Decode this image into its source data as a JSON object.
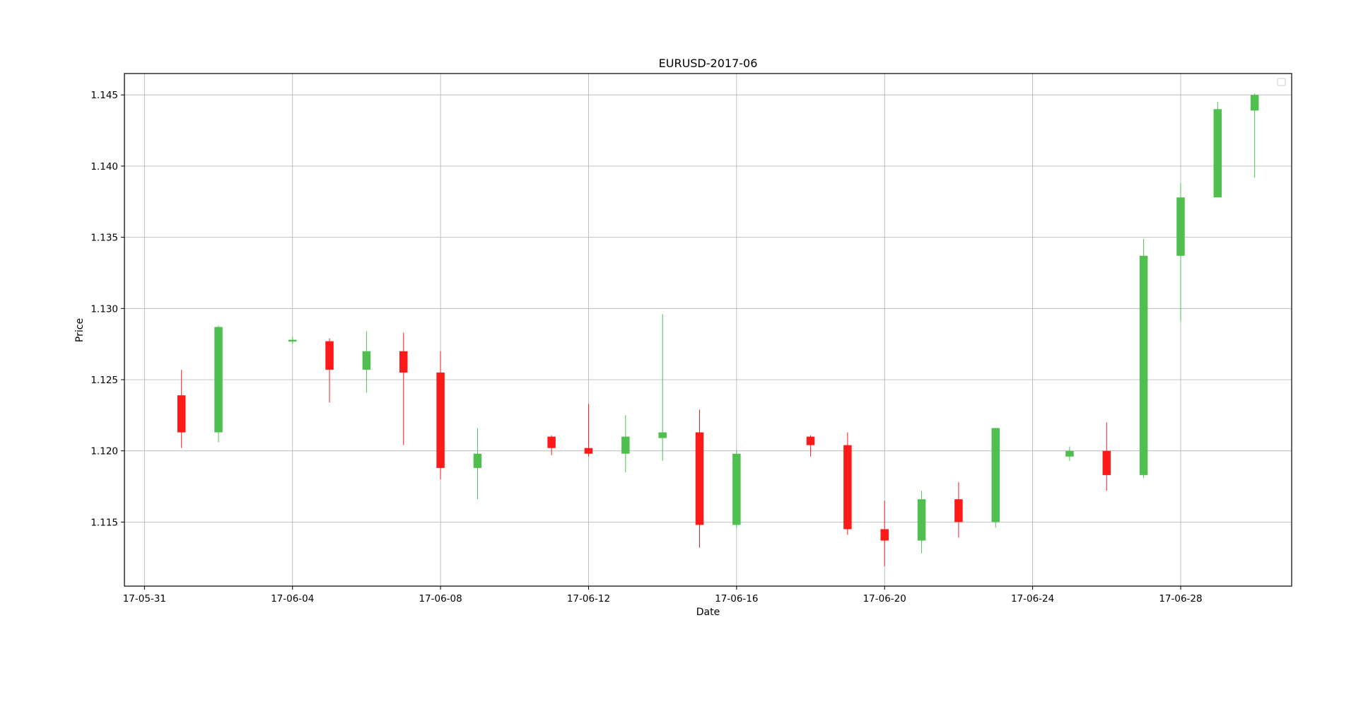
{
  "chart_data": {
    "type": "candlestick",
    "title": "EURUSD-2017-06",
    "xlabel": "Date",
    "ylabel": "Price",
    "grid": true,
    "legend": "top-right",
    "xlim": [
      "2017-05-30T11:00",
      "2017-07-01T00:00"
    ],
    "ylim": [
      1.1105,
      1.1465
    ],
    "x_ticks": [
      {
        "date": "2017-05-31",
        "label": "17-05-31"
      },
      {
        "date": "2017-06-04",
        "label": "17-06-04"
      },
      {
        "date": "2017-06-08",
        "label": "17-06-08"
      },
      {
        "date": "2017-06-12",
        "label": "17-06-12"
      },
      {
        "date": "2017-06-16",
        "label": "17-06-16"
      },
      {
        "date": "2017-06-20",
        "label": "17-06-20"
      },
      {
        "date": "2017-06-24",
        "label": "17-06-24"
      },
      {
        "date": "2017-06-28",
        "label": "17-06-28"
      }
    ],
    "y_ticks": [
      {
        "value": 1.115,
        "label": "1.115"
      },
      {
        "value": 1.12,
        "label": "1.120"
      },
      {
        "value": 1.125,
        "label": "1.125"
      },
      {
        "value": 1.13,
        "label": "1.130"
      },
      {
        "value": 1.135,
        "label": "1.135"
      },
      {
        "value": 1.14,
        "label": "1.140"
      },
      {
        "value": 1.145,
        "label": "1.145"
      }
    ],
    "up_color": "#4fbf4f",
    "down_color": "#ff1a1a",
    "candles": [
      {
        "date": "2017-06-01",
        "open": 1.1239,
        "high": 1.1257,
        "low": 1.1202,
        "close": 1.1213
      },
      {
        "date": "2017-06-02",
        "open": 1.1213,
        "high": 1.1288,
        "low": 1.1206,
        "close": 1.1287
      },
      {
        "date": "2017-06-04",
        "open": 1.1277,
        "high": 1.128,
        "low": 1.1275,
        "close": 1.1278
      },
      {
        "date": "2017-06-05",
        "open": 1.1277,
        "high": 1.1279,
        "low": 1.1234,
        "close": 1.1257
      },
      {
        "date": "2017-06-06",
        "open": 1.1257,
        "high": 1.1284,
        "low": 1.1241,
        "close": 1.127
      },
      {
        "date": "2017-06-07",
        "open": 1.127,
        "high": 1.1283,
        "low": 1.1204,
        "close": 1.1255
      },
      {
        "date": "2017-06-08",
        "open": 1.1255,
        "high": 1.127,
        "low": 1.118,
        "close": 1.1188
      },
      {
        "date": "2017-06-09",
        "open": 1.1188,
        "high": 1.1216,
        "low": 1.1166,
        "close": 1.1198
      },
      {
        "date": "2017-06-11",
        "open": 1.121,
        "high": 1.1211,
        "low": 1.1197,
        "close": 1.1202
      },
      {
        "date": "2017-06-12",
        "open": 1.1202,
        "high": 1.1233,
        "low": 1.1196,
        "close": 1.1198
      },
      {
        "date": "2017-06-13",
        "open": 1.1198,
        "high": 1.1225,
        "low": 1.1185,
        "close": 1.121
      },
      {
        "date": "2017-06-14",
        "open": 1.1209,
        "high": 1.1296,
        "low": 1.1193,
        "close": 1.1213
      },
      {
        "date": "2017-06-15",
        "open": 1.1213,
        "high": 1.1229,
        "low": 1.1132,
        "close": 1.1148
      },
      {
        "date": "2017-06-16",
        "open": 1.1148,
        "high": 1.12,
        "low": 1.1146,
        "close": 1.1198
      },
      {
        "date": "2017-06-18",
        "open": 1.121,
        "high": 1.1211,
        "low": 1.1196,
        "close": 1.1204
      },
      {
        "date": "2017-06-19",
        "open": 1.1204,
        "high": 1.1213,
        "low": 1.1141,
        "close": 1.1145
      },
      {
        "date": "2017-06-20",
        "open": 1.1145,
        "high": 1.1165,
        "low": 1.1119,
        "close": 1.1137
      },
      {
        "date": "2017-06-21",
        "open": 1.1137,
        "high": 1.1172,
        "low": 1.1128,
        "close": 1.1166
      },
      {
        "date": "2017-06-22",
        "open": 1.1166,
        "high": 1.1178,
        "low": 1.1139,
        "close": 1.115
      },
      {
        "date": "2017-06-23",
        "open": 1.115,
        "high": 1.1216,
        "low": 1.1146,
        "close": 1.1216
      },
      {
        "date": "2017-06-25",
        "open": 1.1196,
        "high": 1.1203,
        "low": 1.1193,
        "close": 1.12
      },
      {
        "date": "2017-06-26",
        "open": 1.12,
        "high": 1.122,
        "low": 1.1172,
        "close": 1.1183
      },
      {
        "date": "2017-06-27",
        "open": 1.1183,
        "high": 1.1349,
        "low": 1.1181,
        "close": 1.1337
      },
      {
        "date": "2017-06-28",
        "open": 1.1337,
        "high": 1.1388,
        "low": 1.1291,
        "close": 1.1378
      },
      {
        "date": "2017-06-29",
        "open": 1.1378,
        "high": 1.1445,
        "low": 1.1378,
        "close": 1.144
      },
      {
        "date": "2017-06-30",
        "open": 1.1439,
        "high": 1.1451,
        "low": 1.1392,
        "close": 1.145
      }
    ]
  }
}
